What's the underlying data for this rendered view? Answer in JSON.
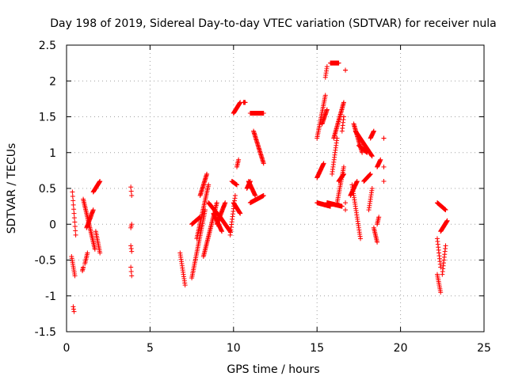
{
  "chart_data": {
    "type": "scatter",
    "title": "Day 198 of 2019, Sidereal Day-to-day VTEC variation (SDTVAR) for receiver nula",
    "xlabel": "GPS time / hours",
    "ylabel": "SDTVAR / TECUs",
    "xlim": [
      0,
      25
    ],
    "ylim": [
      -1.5,
      2.5
    ],
    "xticks": [
      0,
      5,
      10,
      15,
      20,
      25
    ],
    "xtick_labels": [
      "0",
      "5",
      "10",
      "15",
      "20",
      "25"
    ],
    "yticks": [
      -1.5,
      -1,
      -0.5,
      0,
      0.5,
      1,
      1.5,
      2,
      2.5
    ],
    "ytick_labels": [
      "-1.5",
      "-1",
      "-0.5",
      "0",
      "0.5",
      "1",
      "1.5",
      "2",
      "2.5"
    ],
    "grid": true,
    "marker": "+",
    "color": "#ff0000",
    "series": [
      {
        "name": "SDTVAR",
        "segments": [
          [
            [
              0.35,
              0.45
            ],
            [
              0.55,
              -0.15
            ]
          ],
          [
            [
              0.3,
              -0.45
            ],
            [
              0.5,
              -0.72
            ]
          ],
          [
            [
              0.4,
              -1.15
            ],
            [
              0.45,
              -1.22
            ]
          ],
          [
            [
              1.0,
              0.35
            ],
            [
              1.7,
              -0.35
            ]
          ],
          [
            [
              1.2,
              -0.05
            ],
            [
              1.6,
              0.2
            ]
          ],
          [
            [
              1.6,
              0.45
            ],
            [
              2.0,
              0.6
            ]
          ],
          [
            [
              1.75,
              -0.1
            ],
            [
              2.0,
              -0.4
            ]
          ],
          [
            [
              1.1,
              -0.55
            ],
            [
              1.25,
              -0.4
            ]
          ],
          [
            [
              0.95,
              -0.65
            ],
            [
              1.0,
              -0.6
            ]
          ],
          [
            [
              3.85,
              0.52
            ],
            [
              3.9,
              0.4
            ]
          ],
          [
            [
              3.85,
              -0.05
            ],
            [
              3.9,
              0.0
            ]
          ],
          [
            [
              3.85,
              -0.3
            ],
            [
              3.9,
              -0.38
            ]
          ],
          [
            [
              3.85,
              -0.6
            ],
            [
              3.9,
              -0.72
            ]
          ],
          [
            [
              6.8,
              -0.4
            ],
            [
              7.1,
              -0.85
            ]
          ],
          [
            [
              7.5,
              -0.75
            ],
            [
              8.3,
              0.2
            ]
          ],
          [
            [
              7.5,
              0.0
            ],
            [
              8.0,
              0.1
            ]
          ],
          [
            [
              7.8,
              -0.2
            ],
            [
              8.5,
              0.55
            ]
          ],
          [
            [
              8.0,
              0.4
            ],
            [
              8.4,
              0.7
            ]
          ],
          [
            [
              8.2,
              -0.45
            ],
            [
              9.0,
              0.3
            ]
          ],
          [
            [
              8.5,
              0.3
            ],
            [
              9.2,
              0.1
            ]
          ],
          [
            [
              8.8,
              0.15
            ],
            [
              9.3,
              -0.1
            ]
          ],
          [
            [
              9.0,
              0.0
            ],
            [
              9.5,
              0.3
            ]
          ],
          [
            [
              9.2,
              0.1
            ],
            [
              9.8,
              -0.1
            ]
          ],
          [
            [
              9.8,
              -0.15
            ],
            [
              10.1,
              0.4
            ]
          ],
          [
            [
              9.9,
              0.6
            ],
            [
              10.2,
              0.55
            ]
          ],
          [
            [
              10.0,
              0.3
            ],
            [
              10.4,
              0.15
            ]
          ],
          [
            [
              10.0,
              1.55
            ],
            [
              10.4,
              1.7
            ]
          ],
          [
            [
              10.2,
              0.8
            ],
            [
              10.3,
              0.9
            ]
          ],
          [
            [
              10.6,
              1.7
            ],
            [
              10.7,
              1.7
            ]
          ],
          [
            [
              10.8,
              0.5
            ],
            [
              11.0,
              0.6
            ]
          ],
          [
            [
              10.9,
              0.6
            ],
            [
              11.3,
              0.4
            ]
          ],
          [
            [
              11.0,
              0.3
            ],
            [
              11.8,
              0.4
            ]
          ],
          [
            [
              11.0,
              1.55
            ],
            [
              11.8,
              1.55
            ]
          ],
          [
            [
              11.2,
              1.3
            ],
            [
              11.8,
              0.85
            ]
          ],
          [
            [
              15.0,
              0.3
            ],
            [
              15.8,
              0.25
            ]
          ],
          [
            [
              15.0,
              0.65
            ],
            [
              15.4,
              0.85
            ]
          ],
          [
            [
              15.0,
              1.2
            ],
            [
              15.5,
              1.8
            ]
          ],
          [
            [
              15.3,
              1.4
            ],
            [
              15.6,
              1.6
            ]
          ],
          [
            [
              15.5,
              2.05
            ],
            [
              15.6,
              2.2
            ]
          ],
          [
            [
              15.6,
              0.3
            ],
            [
              16.5,
              0.25
            ]
          ],
          [
            [
              15.8,
              2.25
            ],
            [
              16.3,
              2.25
            ]
          ],
          [
            [
              15.9,
              0.7
            ],
            [
              16.2,
              1.2
            ]
          ],
          [
            [
              16.0,
              1.2
            ],
            [
              16.6,
              1.7
            ]
          ],
          [
            [
              16.2,
              0.3
            ],
            [
              16.6,
              0.8
            ]
          ],
          [
            [
              16.3,
              0.6
            ],
            [
              16.6,
              0.7
            ]
          ],
          [
            [
              16.5,
              1.3
            ],
            [
              16.6,
              1.5
            ]
          ],
          [
            [
              16.7,
              0.2
            ],
            [
              16.7,
              0.3
            ]
          ],
          [
            [
              16.7,
              2.15
            ],
            [
              16.7,
              2.15
            ]
          ],
          [
            [
              17.0,
              0.4
            ],
            [
              17.4,
              0.6
            ]
          ],
          [
            [
              17.1,
              0.55
            ],
            [
              17.6,
              -0.2
            ]
          ],
          [
            [
              17.2,
              1.4
            ],
            [
              17.7,
              1.0
            ]
          ],
          [
            [
              17.3,
              1.3
            ],
            [
              18.3,
              0.95
            ]
          ],
          [
            [
              17.5,
              1.1
            ],
            [
              18.0,
              1.0
            ]
          ],
          [
            [
              17.8,
              0.6
            ],
            [
              18.2,
              0.7
            ]
          ],
          [
            [
              18.1,
              0.2
            ],
            [
              18.3,
              0.5
            ]
          ],
          [
            [
              18.2,
              1.2
            ],
            [
              18.4,
              1.3
            ]
          ],
          [
            [
              18.4,
              -0.05
            ],
            [
              18.6,
              -0.25
            ]
          ],
          [
            [
              18.6,
              0.0
            ],
            [
              18.7,
              0.1
            ]
          ],
          [
            [
              18.6,
              0.8
            ],
            [
              18.8,
              0.9
            ]
          ],
          [
            [
              19.0,
              1.2
            ],
            [
              19.0,
              1.2
            ]
          ],
          [
            [
              19.0,
              0.6
            ],
            [
              19.0,
              0.8
            ]
          ],
          [
            [
              22.2,
              0.3
            ],
            [
              22.7,
              0.2
            ]
          ],
          [
            [
              22.2,
              -0.2
            ],
            [
              22.4,
              -0.6
            ]
          ],
          [
            [
              22.2,
              -0.7
            ],
            [
              22.4,
              -0.95
            ]
          ],
          [
            [
              22.4,
              -0.1
            ],
            [
              22.8,
              0.05
            ]
          ],
          [
            [
              22.5,
              -0.7
            ],
            [
              22.7,
              -0.3
            ]
          ]
        ]
      }
    ]
  }
}
